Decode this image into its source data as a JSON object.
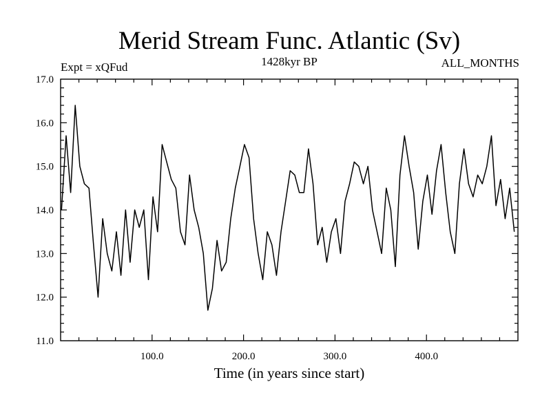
{
  "chart_data": {
    "type": "line",
    "title": "Merid Stream Func. Atlantic (Sv)",
    "subtitle": "1428kyr BP",
    "experiment_label": "Expt = xQFud",
    "season_label": "ALL_MONTHS",
    "xlabel": "Time (in years since start)",
    "ylabel": "",
    "xlim": [
      0,
      500
    ],
    "ylim": [
      11.0,
      17.0
    ],
    "x_ticks": [
      100,
      200,
      300,
      400
    ],
    "x_tick_labels": [
      "100.0",
      "200.0",
      "300.0",
      "400.0"
    ],
    "y_ticks": [
      11,
      12,
      13,
      14,
      15,
      16,
      17
    ],
    "y_tick_labels": [
      "11.0",
      "12.0",
      "13.0",
      "14.0",
      "15.0",
      "16.0",
      "17.0"
    ],
    "series": [
      {
        "name": "Merid Stream Func. Atlantic",
        "x_start": 1,
        "x_step": 5,
        "values": [
          14.0,
          15.7,
          14.4,
          16.4,
          15.0,
          14.6,
          14.5,
          13.2,
          12.0,
          13.8,
          13.0,
          12.6,
          13.5,
          12.5,
          14.0,
          12.8,
          14.0,
          13.6,
          14.0,
          12.4,
          14.3,
          13.5,
          15.5,
          15.1,
          14.7,
          14.5,
          13.5,
          13.2,
          14.8,
          14.0,
          13.6,
          13.0,
          11.7,
          12.2,
          13.3,
          12.6,
          12.8,
          13.8,
          14.5,
          15.0,
          15.5,
          15.2,
          13.8,
          13.0,
          12.4,
          13.5,
          13.2,
          12.5,
          13.5,
          14.2,
          14.9,
          14.8,
          14.4,
          14.4,
          15.4,
          14.6,
          13.2,
          13.6,
          12.8,
          13.5,
          13.8,
          13.0,
          14.2,
          14.6,
          15.1,
          15.0,
          14.6,
          15.0,
          14.0,
          13.5,
          13.0,
          14.5,
          14.0,
          12.7,
          14.8,
          15.7,
          15.0,
          14.4,
          13.1,
          14.2,
          14.8,
          13.9,
          14.9,
          15.5,
          14.4,
          13.5,
          13.0,
          14.6,
          15.4,
          14.6,
          14.3,
          14.8,
          14.6,
          15.0,
          15.7,
          14.1,
          14.7,
          13.8,
          14.5,
          13.5
        ]
      }
    ]
  }
}
